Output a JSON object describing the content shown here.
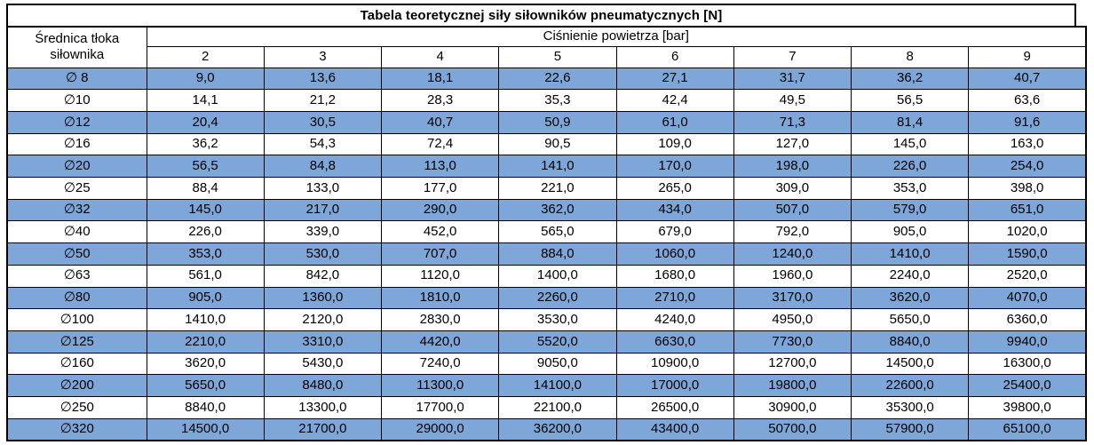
{
  "table": {
    "title": "Tabela teoretycznej siły siłowników pneumatycznych [N]",
    "row_header_label": "Średnica tłoka siłownika",
    "col_group_label": "Ciśnienie powietrza [bar]",
    "pressures": [
      "2",
      "3",
      "4",
      "5",
      "6",
      "7",
      "8",
      "9"
    ],
    "rows": [
      {
        "diameter": "∅ 8",
        "values": [
          "9,0",
          "13,6",
          "18,1",
          "22,6",
          "27,1",
          "31,7",
          "36,2",
          "40,7"
        ]
      },
      {
        "diameter": "∅10",
        "values": [
          "14,1",
          "21,2",
          "28,3",
          "35,3",
          "42,4",
          "49,5",
          "56,5",
          "63,6"
        ]
      },
      {
        "diameter": "∅12",
        "values": [
          "20,4",
          "30,5",
          "40,7",
          "50,9",
          "61,0",
          "71,3",
          "81,4",
          "91,6"
        ]
      },
      {
        "diameter": "∅16",
        "values": [
          "36,2",
          "54,3",
          "72,4",
          "90,5",
          "109,0",
          "127,0",
          "145,0",
          "163,0"
        ]
      },
      {
        "diameter": "∅20",
        "values": [
          "56,5",
          "84,8",
          "113,0",
          "141,0",
          "170,0",
          "198,0",
          "226,0",
          "254,0"
        ]
      },
      {
        "diameter": "∅25",
        "values": [
          "88,4",
          "133,0",
          "177,0",
          "221,0",
          "265,0",
          "309,0",
          "353,0",
          "398,0"
        ]
      },
      {
        "diameter": "∅32",
        "values": [
          "145,0",
          "217,0",
          "290,0",
          "362,0",
          "434,0",
          "507,0",
          "579,0",
          "651,0"
        ]
      },
      {
        "diameter": "∅40",
        "values": [
          "226,0",
          "339,0",
          "452,0",
          "565,0",
          "679,0",
          "792,0",
          "905,0",
          "1020,0"
        ]
      },
      {
        "diameter": "∅50",
        "values": [
          "353,0",
          "530,0",
          "707,0",
          "884,0",
          "1060,0",
          "1240,0",
          "1410,0",
          "1590,0"
        ]
      },
      {
        "diameter": "∅63",
        "values": [
          "561,0",
          "842,0",
          "1120,0",
          "1400,0",
          "1680,0",
          "1960,0",
          "2240,0",
          "2520,0"
        ]
      },
      {
        "diameter": "∅80",
        "values": [
          "905,0",
          "1360,0",
          "1810,0",
          "2260,0",
          "2710,0",
          "3170,0",
          "3620,0",
          "4070,0"
        ]
      },
      {
        "diameter": "∅100",
        "values": [
          "1410,0",
          "2120,0",
          "2830,0",
          "3530,0",
          "4240,0",
          "4950,0",
          "5650,0",
          "6360,0"
        ]
      },
      {
        "diameter": "∅125",
        "values": [
          "2210,0",
          "3310,0",
          "4420,0",
          "5520,0",
          "6630,0",
          "7730,0",
          "8840,0",
          "9940,0"
        ]
      },
      {
        "diameter": "∅160",
        "values": [
          "3620,0",
          "5430,0",
          "7240,0",
          "9050,0",
          "10900,0",
          "12700,0",
          "14500,0",
          "16300,0"
        ]
      },
      {
        "diameter": "∅200",
        "values": [
          "5650,0",
          "8480,0",
          "11300,0",
          "14100,0",
          "17000,0",
          "19800,0",
          "22600,0",
          "25400,0"
        ]
      },
      {
        "diameter": "∅250",
        "values": [
          "8840,0",
          "13300,0",
          "17700,0",
          "22100,0",
          "26500,0",
          "30900,0",
          "35300,0",
          "39800,0"
        ]
      },
      {
        "diameter": "∅320",
        "values": [
          "14500,0",
          "21700,0",
          "29000,0",
          "36200,0",
          "43400,0",
          "50700,0",
          "57900,0",
          "65100,0"
        ]
      }
    ]
  },
  "colors": {
    "row_highlight": "#7ea6d8",
    "border": "#000000",
    "background": "#ffffff"
  }
}
